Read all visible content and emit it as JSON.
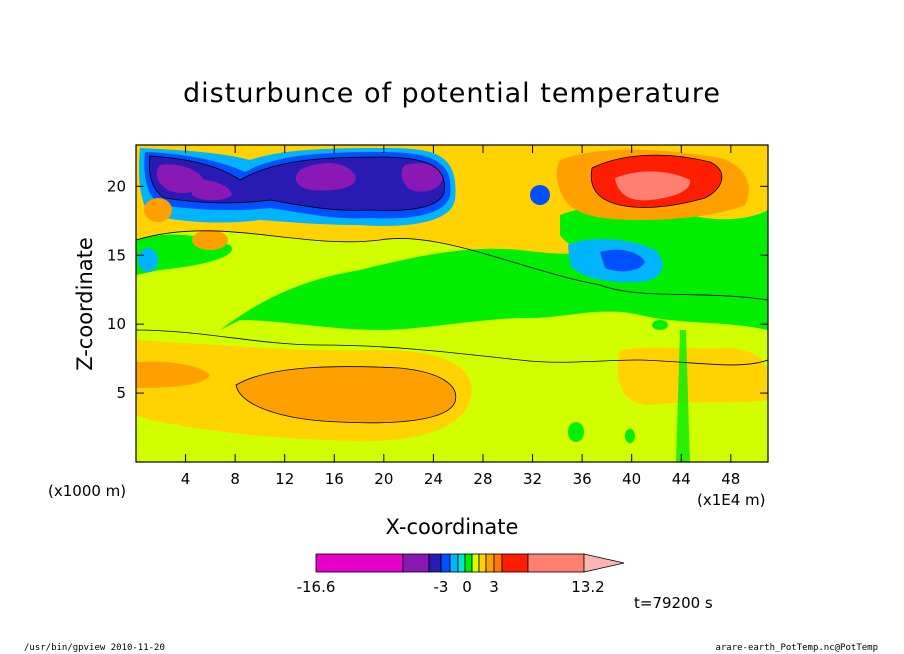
{
  "chart_data": {
    "type": "heatmap",
    "title": "disturbunce of potential temperature",
    "xlabel": "X-coordinate",
    "ylabel": "Z-coordinate",
    "x_scale_note": "(x1E4 m)",
    "y_scale_note": "(x1000 m)",
    "x_ticks": [
      "4",
      "8",
      "12",
      "16",
      "20",
      "24",
      "28",
      "32",
      "36",
      "40",
      "44",
      "48"
    ],
    "y_ticks": [
      "5",
      "10",
      "15",
      "20"
    ],
    "xlim": [
      0,
      51
    ],
    "ylim": [
      0,
      23
    ],
    "colorbar": {
      "label_values": [
        "-16.6",
        "-3",
        "0",
        "3",
        "13.2"
      ],
      "colors": [
        "#e600c8",
        "#8a18b4",
        "#2a1ab4",
        "#0050ff",
        "#00b4ff",
        "#00e6c8",
        "#00ee00",
        "#d2ff00",
        "#ffd200",
        "#ffa000",
        "#ff7800",
        "#ff1e00",
        "#ff8070",
        "#ffb4b4"
      ]
    },
    "time_label": "t=79200 s",
    "contours_description": "filled contour of potential temperature disturbance",
    "regions": [
      {
        "value": "negative",
        "x": [
          1,
          26
        ],
        "z": [
          18,
          23
        ],
        "color": "#8a18b4"
      },
      {
        "value": "positive",
        "x": [
          37,
          47
        ],
        "z": [
          18,
          23
        ],
        "color": "#ff1e00"
      },
      {
        "value": "positive",
        "x": [
          8,
          26
        ],
        "z": [
          3.5,
          7.5
        ],
        "color": "#ffa000"
      }
    ]
  },
  "footer": {
    "left": "/usr/bin/gpview  2010-11-20",
    "right": "arare-earth_PotTemp.nc@PotTemp"
  }
}
